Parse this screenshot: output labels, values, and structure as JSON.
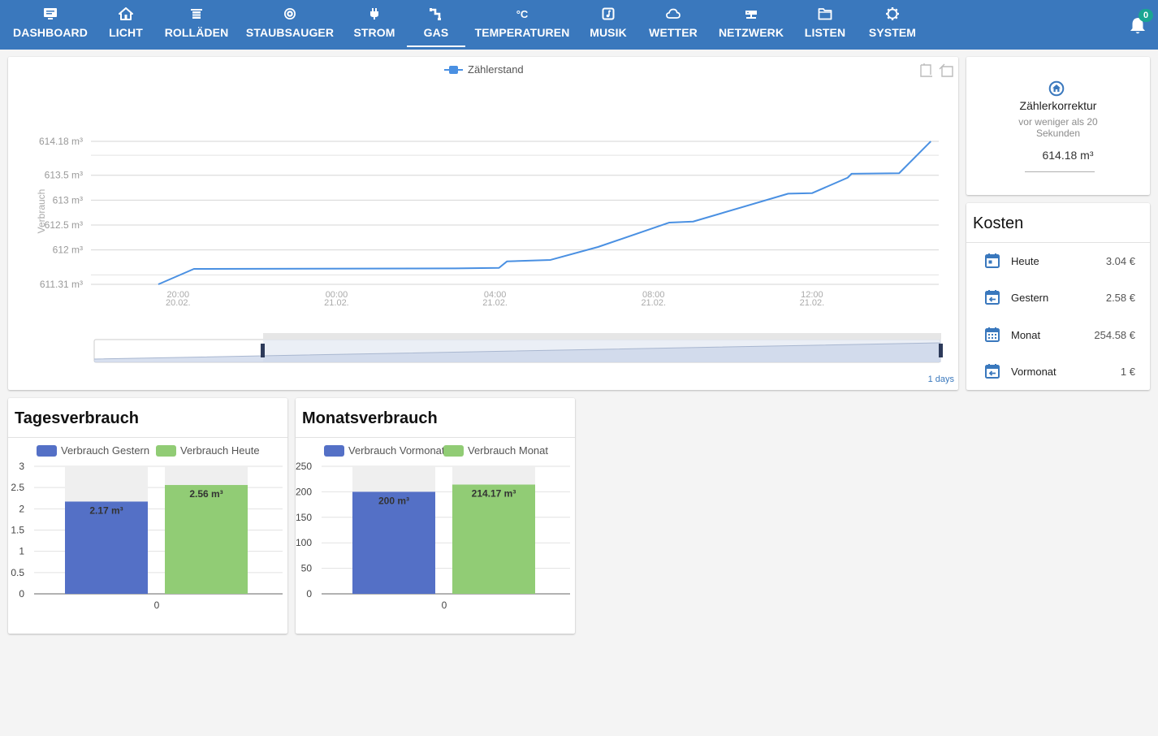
{
  "nav": {
    "tabs": [
      {
        "label": "DASHBOARD",
        "icon": "monitor-icon"
      },
      {
        "label": "LICHT",
        "icon": "house-icon"
      },
      {
        "label": "ROLLÄDEN",
        "icon": "blinds-icon"
      },
      {
        "label": "STAUBSAUGER",
        "icon": "vacuum-icon"
      },
      {
        "label": "STROM",
        "icon": "plug-icon"
      },
      {
        "label": "GAS",
        "icon": "gas-pipe-icon",
        "active": true
      },
      {
        "label": "TEMPERATUREN",
        "icon": "celsius-icon",
        "icon_text": "°C"
      },
      {
        "label": "MUSIK",
        "icon": "music-note-icon"
      },
      {
        "label": "WETTER",
        "icon": "cloud-icon"
      },
      {
        "label": "NETZWERK",
        "icon": "network-icon"
      },
      {
        "label": "LISTEN",
        "icon": "folder-icon"
      },
      {
        "label": "SYSTEM",
        "icon": "gear-icon"
      }
    ],
    "notifications": "0",
    "color": "#3a78bd"
  },
  "chart_data": [
    {
      "type": "line",
      "legend": "Zählerstand",
      "ylabel": "Verbrauch",
      "y_ticks": [
        "614.18 m³",
        "613.5 m³",
        "613 m³",
        "612.5 m³",
        "612 m³",
        "611.31 m³"
      ],
      "y_tick_values": [
        614.18,
        613.5,
        613.0,
        612.5,
        612.0,
        611.31
      ],
      "ylim": [
        611.31,
        614.18
      ],
      "x_ticks": [
        {
          "time": "20:00",
          "date": "20.02.",
          "hours": 20
        },
        {
          "time": "00:00",
          "date": "21.02.",
          "hours": 24
        },
        {
          "time": "04:00",
          "date": "21.02.",
          "hours": 28
        },
        {
          "time": "08:00",
          "date": "21.02.",
          "hours": 32
        },
        {
          "time": "12:00",
          "date": "21.02.",
          "hours": 36
        }
      ],
      "xlim_hours": [
        17.8,
        39.2
      ],
      "x_hours": [
        19.5,
        20.4,
        22.0,
        27.0,
        29.0,
        30.0,
        30.2,
        32.2,
        33.2,
        35.4,
        36.0,
        38.9
      ],
      "values": [
        611.31,
        611.62,
        611.62,
        611.62,
        611.62,
        611.62,
        611.81,
        612.09,
        612.56,
        613.12,
        613.75,
        614.18
      ],
      "line_points": [
        [
          19.5,
          611.31
        ],
        [
          20.4,
          611.62
        ],
        [
          27.0,
          611.63
        ],
        [
          28.1,
          611.64
        ],
        [
          28.3,
          611.77
        ],
        [
          29.4,
          611.8
        ],
        [
          30.6,
          612.06
        ],
        [
          32.4,
          612.55
        ],
        [
          33.0,
          612.57
        ],
        [
          35.4,
          613.13
        ],
        [
          36.0,
          613.14
        ],
        [
          36.9,
          613.45
        ],
        [
          37.0,
          613.53
        ],
        [
          38.2,
          613.54
        ],
        [
          39.0,
          614.18
        ]
      ],
      "line_color": "#4a90e2",
      "range_label": "1 days"
    },
    {
      "type": "bar",
      "title": "Tagesverbrauch",
      "categories": [
        "0"
      ],
      "series": [
        {
          "name": "Verbrauch Gestern",
          "values": [
            2.17
          ],
          "label": "2.17 m³",
          "color": "#5470c6"
        },
        {
          "name": "Verbrauch Heute",
          "values": [
            2.56
          ],
          "label": "2.56 m³",
          "color": "#91cc75"
        }
      ],
      "ylim": [
        0,
        3
      ],
      "y_ticks": [
        "3",
        "2.5",
        "2",
        "1.5",
        "1",
        "0.5",
        "0"
      ],
      "y_tick_values": [
        3,
        2.5,
        2,
        1.5,
        1,
        0.5,
        0
      ]
    },
    {
      "type": "bar",
      "title": "Monatsverbrauch",
      "categories": [
        "0"
      ],
      "series": [
        {
          "name": "Verbrauch Vormonat",
          "values": [
            200
          ],
          "label": "200 m³",
          "color": "#5470c6"
        },
        {
          "name": "Verbrauch Monat",
          "values": [
            214.17
          ],
          "label": "214.17 m³",
          "color": "#91cc75"
        }
      ],
      "ylim": [
        0,
        250
      ],
      "y_ticks": [
        "250",
        "200",
        "150",
        "100",
        "50",
        "0"
      ],
      "y_tick_values": [
        250,
        200,
        150,
        100,
        50,
        0
      ]
    }
  ],
  "counter": {
    "title": "Zählerkorrektur",
    "time": "vor weniger als 20 Sekunden",
    "value": "614.18 m³",
    "icon": "home-circle-icon"
  },
  "costs": {
    "title": "Kosten",
    "rows": [
      {
        "label": "Heute",
        "value": "3.04 €",
        "icon": "calendar-today-icon"
      },
      {
        "label": "Gestern",
        "value": "2.58 €",
        "icon": "calendar-back-icon"
      },
      {
        "label": "Monat",
        "value": "254.58 €",
        "icon": "calendar-month-icon"
      },
      {
        "label": "Vormonat",
        "value": "1 €",
        "icon": "calendar-back-icon"
      }
    ],
    "icon_color": "#3a78bd"
  },
  "bar_cards": {
    "tages_title": "Tagesverbrauch",
    "monats_title": "Monatsverbrauch"
  }
}
